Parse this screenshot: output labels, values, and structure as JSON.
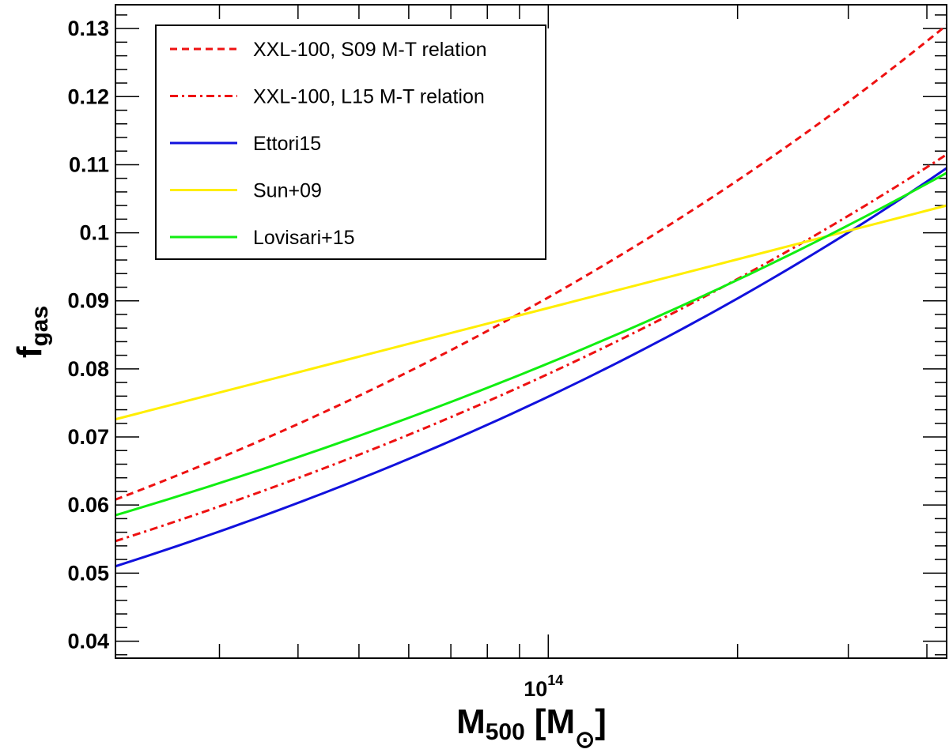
{
  "chart_data": {
    "type": "line",
    "x_scale": "log",
    "xlabel": {
      "main": "M",
      "sub": "500",
      "bracket_open": "[M",
      "bracket_close": "]",
      "sun_symbol": "⊙"
    },
    "ylabel": {
      "main": "f",
      "sub": "gas"
    },
    "xlim": [
      20500000000000.0,
      430000000000000.0
    ],
    "ylim": [
      0.0375,
      0.1335
    ],
    "x_tick_label": {
      "base": "10",
      "exponent": "14"
    },
    "y_ticks": [
      "0.04",
      "0.05",
      "0.06",
      "0.07",
      "0.08",
      "0.09",
      "0.1",
      "0.11",
      "0.12",
      "0.13"
    ],
    "series": [
      {
        "name": "XXL-100, S09 M-T relation",
        "color": "#ee1111",
        "dash": "dashed",
        "x": [
          20500000000000.0,
          430000000000000.0
        ],
        "y": [
          0.0608,
          0.1305
        ]
      },
      {
        "name": "XXL-100, L15 M-T relation",
        "color": "#ee1111",
        "dash": "dashdot",
        "x": [
          20500000000000.0,
          430000000000000.0
        ],
        "y": [
          0.0547,
          0.1115
        ]
      },
      {
        "name": "Ettori15",
        "color": "#1111dd",
        "dash": "solid",
        "x": [
          20500000000000.0,
          430000000000000.0
        ],
        "y": [
          0.051,
          0.1095
        ]
      },
      {
        "name": "Sun+09",
        "color": "#ffee00",
        "dash": "solid",
        "x": [
          20500000000000.0,
          430000000000000.0
        ],
        "y": [
          0.0726,
          0.104
        ]
      },
      {
        "name": "Lovisari+15",
        "color": "#11ee11",
        "dash": "solid",
        "x": [
          20500000000000.0,
          430000000000000.0
        ],
        "y": [
          0.0585,
          0.1088
        ]
      }
    ],
    "legend_position": "top-left"
  }
}
